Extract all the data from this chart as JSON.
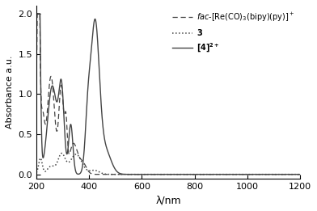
{
  "xlabel": "λ/nm",
  "ylabel": "Absorbance a.u.",
  "xlim": [
    200,
    1200
  ],
  "ylim": [
    -0.05,
    2.1
  ],
  "yticks": [
    0.0,
    0.5,
    1.0,
    1.5,
    2.0
  ],
  "xticks": [
    200,
    400,
    600,
    800,
    1000,
    1200
  ],
  "line_color": "#444444",
  "fac_re": {
    "peaks": [
      {
        "mu": 207,
        "sigma": 5,
        "amp": 3.0
      },
      {
        "mu": 222,
        "sigma": 8,
        "amp": 0.7
      },
      {
        "mu": 255,
        "sigma": 14,
        "amp": 1.22
      },
      {
        "mu": 294,
        "sigma": 9,
        "amp": 1.08
      },
      {
        "mu": 312,
        "sigma": 5,
        "amp": 0.55
      },
      {
        "mu": 340,
        "sigma": 15,
        "amp": 0.38
      },
      {
        "mu": 375,
        "sigma": 14,
        "amp": 0.14
      }
    ]
  },
  "comp3": {
    "peaks": [
      {
        "mu": 215,
        "sigma": 7,
        "amp": 0.2
      },
      {
        "mu": 255,
        "sigma": 14,
        "amp": 0.1
      },
      {
        "mu": 295,
        "sigma": 14,
        "amp": 0.25
      },
      {
        "mu": 350,
        "sigma": 22,
        "amp": 0.25
      },
      {
        "mu": 420,
        "sigma": 18,
        "amp": 0.05
      }
    ]
  },
  "comp4": {
    "peaks": [
      {
        "mu": 207,
        "sigma": 6,
        "amp": 3.5
      },
      {
        "mu": 260,
        "sigma": 18,
        "amp": 1.1
      },
      {
        "mu": 295,
        "sigma": 10,
        "amp": 1.0
      },
      {
        "mu": 330,
        "sigma": 8,
        "amp": 0.62
      },
      {
        "mu": 395,
        "sigma": 10,
        "amp": 0.62
      },
      {
        "mu": 422,
        "sigma": 16,
        "amp": 1.85
      },
      {
        "mu": 460,
        "sigma": 22,
        "amp": 0.3
      }
    ]
  }
}
